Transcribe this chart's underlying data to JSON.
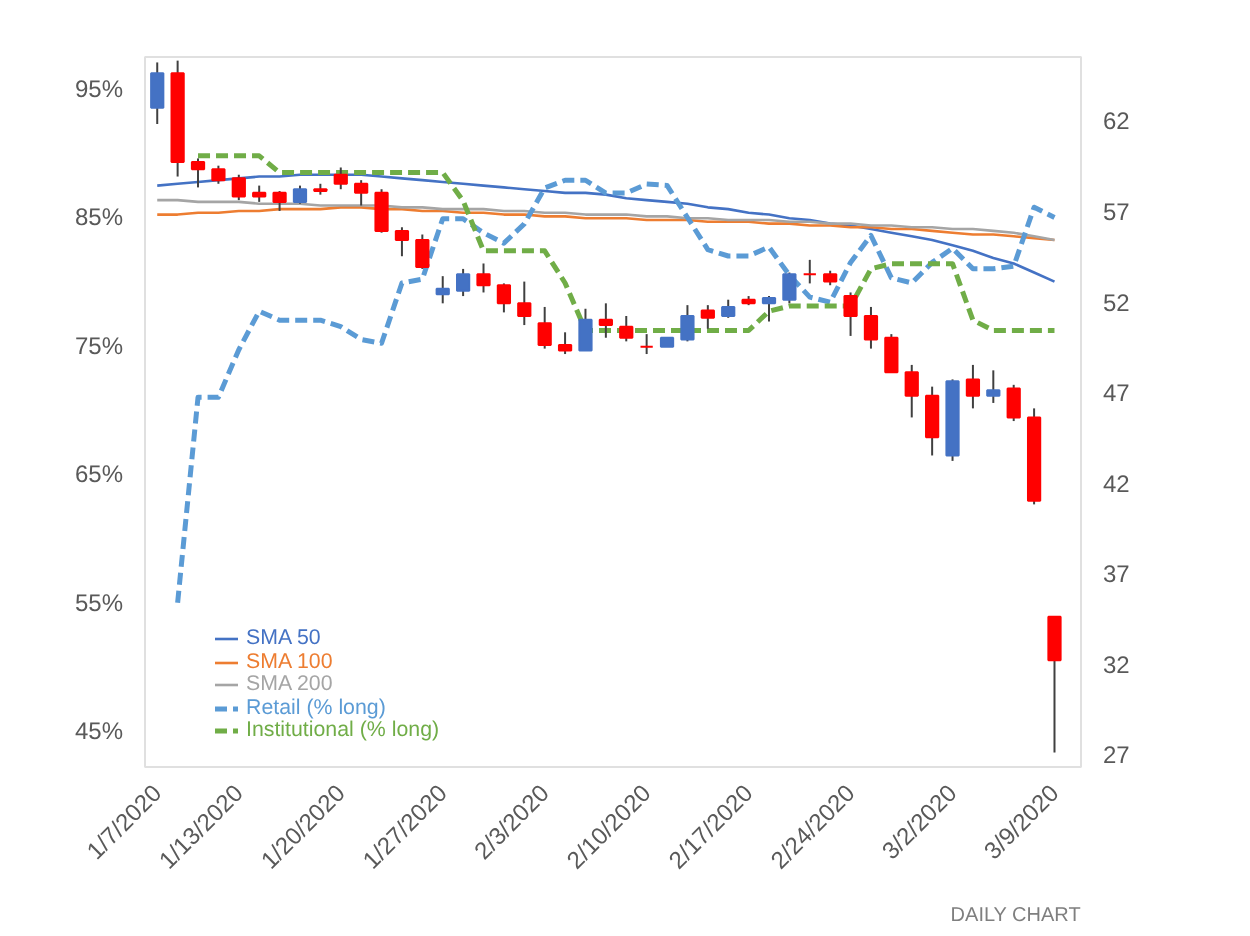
{
  "chart_data": {
    "type": "candlestick",
    "categories": [
      "1/7/2020",
      null,
      null,
      null,
      "1/13/2020",
      null,
      null,
      null,
      null,
      "1/20/2020",
      null,
      null,
      null,
      null,
      "1/27/2020",
      null,
      null,
      null,
      null,
      "2/3/2020",
      null,
      null,
      null,
      null,
      "2/10/2020",
      null,
      null,
      null,
      null,
      "2/17/2020",
      null,
      null,
      null,
      null,
      "2/24/2020",
      null,
      null,
      null,
      null,
      "3/2/2020",
      null,
      null,
      null,
      null,
      "3/9/2020"
    ],
    "series": [
      {
        "axis": "y2",
        "ohlc": [
          [
            62.7,
            65.2,
            61.8,
            64.6
          ],
          [
            64.6,
            65.3,
            58.9,
            59.7
          ],
          [
            59.7,
            59.9,
            58.3,
            59.3
          ],
          [
            59.3,
            59.5,
            58.5,
            58.7
          ],
          [
            58.8,
            59.0,
            57.6,
            57.8
          ],
          [
            58.0,
            58.4,
            57.5,
            57.8
          ],
          [
            58.0,
            58.1,
            57.0,
            57.5
          ],
          [
            57.5,
            58.4,
            57.4,
            58.2
          ],
          [
            58.2,
            58.5,
            57.9,
            58.1
          ],
          [
            59.0,
            59.4,
            58.2,
            58.5
          ],
          [
            58.5,
            58.7,
            57.3,
            58.0
          ],
          [
            58.0,
            58.2,
            55.8,
            55.9
          ],
          [
            55.9,
            56.1,
            54.5,
            55.4
          ],
          [
            55.4,
            55.7,
            53.8,
            53.9
          ],
          [
            52.4,
            53.4,
            51.9,
            52.7
          ],
          [
            52.6,
            53.8,
            52.3,
            53.5
          ],
          [
            53.5,
            54.1,
            52.5,
            52.9
          ],
          [
            52.9,
            53.0,
            51.4,
            51.9
          ],
          [
            51.9,
            53.1,
            50.7,
            51.2
          ],
          [
            50.8,
            51.7,
            49.4,
            49.6
          ],
          [
            49.6,
            50.3,
            49.1,
            49.3
          ],
          [
            49.3,
            51.6,
            49.3,
            51.0
          ],
          [
            51.0,
            51.9,
            50.0,
            50.7
          ],
          [
            50.6,
            51.2,
            49.8,
            50.0
          ],
          [
            49.5,
            50.2,
            49.1,
            49.5
          ],
          [
            49.5,
            50.0,
            49.5,
            50.0
          ],
          [
            49.9,
            51.8,
            49.8,
            51.2
          ],
          [
            51.5,
            51.8,
            50.5,
            51.1
          ],
          [
            51.2,
            52.1,
            51.1,
            51.7
          ],
          [
            52.1,
            52.3,
            51.8,
            51.9
          ],
          [
            51.9,
            52.3,
            50.9,
            52.2
          ],
          [
            52.1,
            53.6,
            51.9,
            53.5
          ],
          [
            53.5,
            54.3,
            53.0,
            53.5
          ],
          [
            53.5,
            53.7,
            52.9,
            53.1
          ],
          [
            52.3,
            52.5,
            50.1,
            51.2
          ],
          [
            51.2,
            51.7,
            49.4,
            49.9
          ],
          [
            50.0,
            50.2,
            48.1,
            48.1
          ],
          [
            48.1,
            48.5,
            45.6,
            46.8
          ],
          [
            46.8,
            47.3,
            43.5,
            44.5
          ],
          [
            43.5,
            47.7,
            43.2,
            47.6
          ],
          [
            47.7,
            48.5,
            46.1,
            46.8
          ],
          [
            46.8,
            48.2,
            46.4,
            47.1
          ],
          [
            47.2,
            47.4,
            45.4,
            45.6
          ],
          [
            45.6,
            46.1,
            40.8,
            41.0
          ],
          [
            34.6,
            34.6,
            27.1,
            32.2
          ]
        ],
        "colors": [
          "#4472c4",
          "#ff0000",
          "#ff0000",
          "#ff0000",
          "#ff0000",
          "#ff0000",
          "#ff0000",
          "#4472c4",
          "#ff0000",
          "#ff0000",
          "#ff0000",
          "#ff0000",
          "#ff0000",
          "#ff0000",
          "#4472c4",
          "#4472c4",
          "#ff0000",
          "#ff0000",
          "#ff0000",
          "#ff0000",
          "#ff0000",
          "#4472c4",
          "#ff0000",
          "#ff0000",
          "#ff0000",
          "#4472c4",
          "#4472c4",
          "#ff0000",
          "#4472c4",
          "#ff0000",
          "#4472c4",
          "#4472c4",
          "#ff0000",
          "#ff0000",
          "#ff0000",
          "#ff0000",
          "#ff0000",
          "#ff0000",
          "#ff0000",
          "#4472c4",
          "#ff0000",
          "#4472c4",
          "#ff0000",
          "#ff0000",
          "#ff0000"
        ]
      },
      {
        "type": "line",
        "axis": "y2",
        "name": "SMA 50",
        "color": "#4472c4",
        "line_style": "solid",
        "values": [
          58.4,
          58.5,
          58.6,
          58.7,
          58.8,
          58.9,
          58.9,
          59.0,
          59.0,
          59.0,
          59.0,
          58.9,
          58.8,
          58.7,
          58.6,
          58.5,
          58.4,
          58.3,
          58.2,
          58.1,
          58.0,
          58.0,
          57.9,
          57.7,
          57.6,
          57.5,
          57.4,
          57.2,
          57.1,
          56.9,
          56.8,
          56.6,
          56.5,
          56.3,
          56.2,
          56.0,
          55.8,
          55.6,
          55.4,
          55.1,
          54.8,
          54.4,
          54.1,
          53.6,
          53.1
        ]
      },
      {
        "type": "line",
        "axis": "y2",
        "name": "SMA 100",
        "color": "#ed7d31",
        "line_style": "solid",
        "values": [
          56.8,
          56.8,
          56.9,
          56.9,
          57.0,
          57.0,
          57.1,
          57.1,
          57.1,
          57.2,
          57.2,
          57.1,
          57.1,
          57.0,
          57.0,
          56.9,
          56.9,
          56.8,
          56.8,
          56.7,
          56.7,
          56.6,
          56.6,
          56.6,
          56.5,
          56.5,
          56.5,
          56.4,
          56.4,
          56.4,
          56.3,
          56.3,
          56.2,
          56.2,
          56.1,
          56.1,
          56.0,
          56.0,
          55.9,
          55.8,
          55.7,
          55.7,
          55.6,
          55.5,
          55.4
        ]
      },
      {
        "type": "line",
        "axis": "y2",
        "name": "SMA 200",
        "color": "#a5a5a5",
        "line_style": "solid",
        "values": [
          57.6,
          57.6,
          57.5,
          57.5,
          57.5,
          57.4,
          57.4,
          57.4,
          57.3,
          57.3,
          57.3,
          57.3,
          57.2,
          57.2,
          57.1,
          57.1,
          57.1,
          57.0,
          57.0,
          56.9,
          56.9,
          56.8,
          56.8,
          56.8,
          56.7,
          56.7,
          56.6,
          56.6,
          56.5,
          56.5,
          56.5,
          56.4,
          56.4,
          56.3,
          56.3,
          56.2,
          56.2,
          56.1,
          56.1,
          56.0,
          56.0,
          55.9,
          55.8,
          55.6,
          55.4
        ]
      },
      {
        "type": "line",
        "name": "Retail (% long)",
        "color": "#5b9bd5",
        "line_style": "dashed",
        "values": [
          null,
          55.0,
          71.0,
          71.0,
          74.7,
          77.7,
          77.0,
          77.0,
          77.0,
          76.5,
          75.5,
          75.2,
          79.9,
          80.2,
          84.9,
          84.9,
          83.8,
          83.0,
          84.5,
          87.3,
          87.9,
          87.9,
          86.9,
          86.9,
          87.6,
          87.5,
          85.0,
          82.5,
          82.0,
          82.0,
          82.7,
          80.5,
          78.8,
          78.4,
          81.5,
          83.6,
          80.3,
          79.9,
          81.5,
          82.6,
          81.0,
          81.0,
          81.2,
          85.8,
          85.0
        ]
      },
      {
        "type": "line",
        "name": "Institutional (% long)",
        "color": "#70ad47",
        "line_style": "dashed",
        "values": [
          null,
          null,
          89.8,
          89.8,
          89.8,
          89.8,
          88.5,
          88.5,
          88.5,
          88.5,
          88.5,
          88.5,
          88.5,
          88.5,
          88.5,
          86.3,
          82.4,
          82.4,
          82.4,
          82.4,
          79.9,
          76.2,
          76.2,
          76.2,
          76.2,
          76.2,
          76.2,
          76.2,
          76.2,
          76.2,
          77.7,
          78.1,
          78.1,
          78.1,
          78.1,
          81.0,
          81.4,
          81.4,
          81.4,
          81.4,
          77.0,
          76.2,
          76.2,
          76.2,
          76.2
        ]
      }
    ],
    "ylim": [
      42.2,
      97.5
    ],
    "yticks": [
      {
        "value": 45,
        "label": "45%"
      },
      {
        "value": 55,
        "label": "55%"
      },
      {
        "value": 65,
        "label": "65%"
      },
      {
        "value": 75,
        "label": "75%"
      },
      {
        "value": 85,
        "label": "85%"
      },
      {
        "value": 95,
        "label": "95%"
      }
    ],
    "y2lim": [
      26.3,
      65.5
    ],
    "y2ticks": [
      27,
      32,
      37,
      42,
      47,
      52,
      57,
      62
    ],
    "grid": false,
    "legend": "bottom left",
    "annotations": [
      "DAILY CHART"
    ]
  }
}
